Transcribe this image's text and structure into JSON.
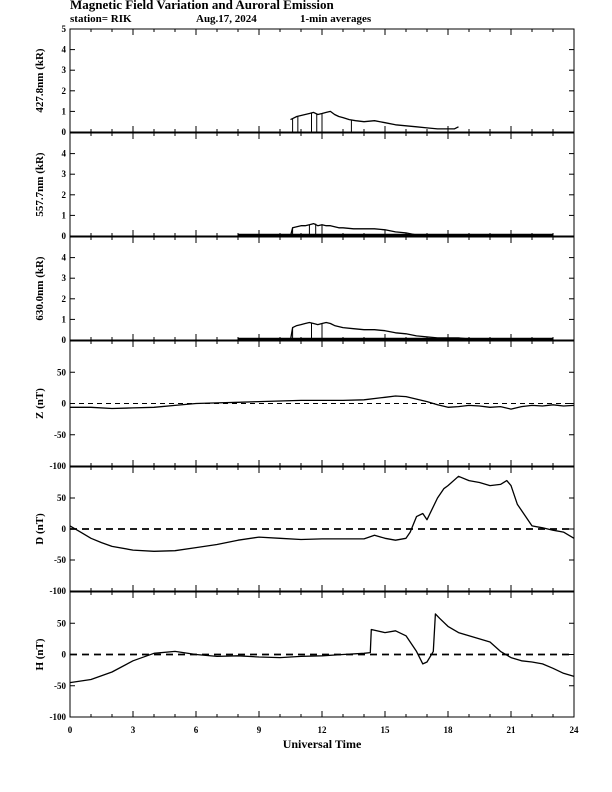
{
  "header": {
    "title": "Magnetic Field Variation and Auroral Emission",
    "station": "station= RIK",
    "date": "Aug.17, 2024",
    "averaging": "1-min averages"
  },
  "x_axis": {
    "label": "Universal Time",
    "range": [
      0,
      24
    ],
    "ticks": [
      0,
      3,
      6,
      9,
      12,
      15,
      18,
      21,
      24
    ]
  },
  "chart_data": [
    {
      "type": "line",
      "ylabel": "427.8nm (kR)",
      "ylim": [
        0,
        5
      ],
      "yticks": [
        0,
        1,
        2,
        3,
        4,
        5
      ],
      "x": [
        10.5,
        10.6,
        10.8,
        11.0,
        11.2,
        11.4,
        11.6,
        11.8,
        12.0,
        12.2,
        12.4,
        12.6,
        12.8,
        13.0,
        13.3,
        13.6,
        14.0,
        14.5,
        15.0,
        15.5,
        16.0,
        16.5,
        17.0,
        17.5,
        18.0,
        18.3,
        18.5
      ],
      "y": [
        0.6,
        0.65,
        0.75,
        0.8,
        0.85,
        0.9,
        0.95,
        0.85,
        0.9,
        0.95,
        1.0,
        0.85,
        0.75,
        0.7,
        0.6,
        0.55,
        0.5,
        0.55,
        0.45,
        0.35,
        0.3,
        0.25,
        0.2,
        0.15,
        0.15,
        0.15,
        0.25
      ],
      "spikes": [
        10.6,
        10.85,
        11.5,
        11.75,
        12.0,
        13.4
      ]
    },
    {
      "type": "line",
      "ylabel": "557.7nm (kR)",
      "ylim": [
        0,
        5
      ],
      "yticks": [
        0,
        1,
        2,
        3,
        4
      ],
      "baseline_x": [
        8.0,
        23.0
      ],
      "x": [
        8.0,
        10.5,
        10.6,
        10.8,
        11.0,
        11.2,
        11.4,
        11.6,
        11.8,
        12.0,
        12.2,
        12.4,
        12.6,
        12.8,
        13.0,
        13.5,
        14.0,
        14.5,
        15.0,
        15.5,
        16.0,
        16.5,
        17.0,
        17.5,
        18.0,
        18.5,
        19.0,
        23.0
      ],
      "y": [
        0.0,
        0.0,
        0.4,
        0.45,
        0.5,
        0.5,
        0.55,
        0.6,
        0.5,
        0.55,
        0.5,
        0.5,
        0.45,
        0.4,
        0.4,
        0.35,
        0.35,
        0.35,
        0.3,
        0.2,
        0.15,
        0.05,
        0.0,
        0.0,
        0.0,
        0.0,
        0.0,
        0.0
      ],
      "spikes": [
        10.6,
        11.4,
        11.7,
        12.0,
        18.5
      ]
    },
    {
      "type": "line",
      "ylabel": "630.0nm (kR)",
      "ylim": [
        0,
        5
      ],
      "yticks": [
        0,
        1,
        2,
        3,
        4
      ],
      "baseline_x": [
        8.0,
        23.0
      ],
      "x": [
        8.0,
        10.5,
        10.6,
        10.8,
        11.0,
        11.2,
        11.4,
        11.6,
        11.8,
        12.0,
        12.2,
        12.4,
        12.6,
        12.8,
        13.0,
        13.5,
        14.0,
        14.5,
        15.0,
        15.5,
        16.0,
        16.5,
        17.0,
        17.5,
        18.0,
        18.5,
        19.0,
        23.0
      ],
      "y": [
        0.0,
        0.0,
        0.6,
        0.7,
        0.75,
        0.8,
        0.85,
        0.8,
        0.75,
        0.8,
        0.85,
        0.8,
        0.7,
        0.65,
        0.6,
        0.55,
        0.5,
        0.5,
        0.45,
        0.35,
        0.3,
        0.2,
        0.15,
        0.1,
        0.1,
        0.1,
        0.05,
        0.05
      ],
      "spikes": [
        10.6,
        11.5,
        12.0,
        18.5
      ]
    },
    {
      "type": "line",
      "ylabel": "Z (nT)",
      "ylim": [
        -100,
        100
      ],
      "yticks": [
        -100,
        -50,
        0,
        50
      ],
      "zero_line": "thin-dashed",
      "x": [
        0,
        1,
        2,
        3,
        4,
        5,
        6,
        7,
        8,
        9,
        10,
        11,
        12,
        13,
        14,
        15,
        15.5,
        16,
        16.5,
        17,
        17.5,
        18,
        18.5,
        19,
        19.5,
        20,
        20.5,
        21,
        21.5,
        22,
        22.5,
        23,
        23.5,
        24
      ],
      "y": [
        -6,
        -6,
        -8,
        -7,
        -6,
        -3,
        0,
        1,
        2,
        3,
        4,
        5,
        5,
        5,
        6,
        10,
        12,
        11,
        7,
        3,
        -2,
        -6,
        -5,
        -3,
        -4,
        -6,
        -5,
        -9,
        -5,
        -3,
        -4,
        -2,
        -4,
        -3
      ]
    },
    {
      "type": "line",
      "ylabel": "D (nT)",
      "ylim": [
        -100,
        100
      ],
      "yticks": [
        -100,
        -50,
        0,
        50
      ],
      "zero_line": "thick-dashed",
      "x": [
        0,
        0.5,
        1,
        1.5,
        2,
        3,
        4,
        5,
        6,
        7,
        8,
        9,
        10,
        11,
        12,
        13,
        14,
        14.5,
        15,
        15.5,
        16,
        16.2,
        16.5,
        16.8,
        17.0,
        17.5,
        17.8,
        18.0,
        18.5,
        19.0,
        19.5,
        20.0,
        20.5,
        20.8,
        21.0,
        21.3,
        21.6,
        22.0,
        22.5,
        23.0,
        23.5,
        24
      ],
      "y": [
        5,
        -5,
        -15,
        -22,
        -28,
        -34,
        -36,
        -35,
        -30,
        -25,
        -18,
        -13,
        -15,
        -17,
        -16,
        -16,
        -16,
        -10,
        -15,
        -18,
        -15,
        -5,
        20,
        25,
        15,
        50,
        65,
        70,
        85,
        78,
        75,
        70,
        72,
        78,
        70,
        40,
        25,
        5,
        2,
        -2,
        -5,
        -15
      ]
    },
    {
      "type": "line",
      "ylabel": "H (nT)",
      "ylim": [
        -100,
        100
      ],
      "yticks": [
        -100,
        -50,
        0,
        50
      ],
      "zero_line": "thick-dashed",
      "x": [
        0,
        1,
        2,
        3,
        4,
        5,
        6,
        7,
        8,
        9,
        10,
        11,
        12,
        13,
        14,
        14.3,
        14.35,
        15,
        15.5,
        16,
        16.5,
        16.8,
        17.0,
        17.3,
        17.4,
        17.6,
        18.0,
        18.5,
        19.0,
        19.5,
        20.0,
        20.5,
        21.0,
        21.5,
        22.0,
        22.5,
        23.0,
        23.5,
        24
      ],
      "y": [
        -45,
        -40,
        -28,
        -10,
        2,
        5,
        0,
        -3,
        -2,
        -4,
        -5,
        -3,
        -2,
        0,
        2,
        3,
        40,
        35,
        38,
        30,
        5,
        -15,
        -12,
        5,
        65,
        58,
        45,
        35,
        30,
        25,
        20,
        5,
        -5,
        -10,
        -12,
        -15,
        -22,
        -30,
        -35
      ]
    }
  ]
}
